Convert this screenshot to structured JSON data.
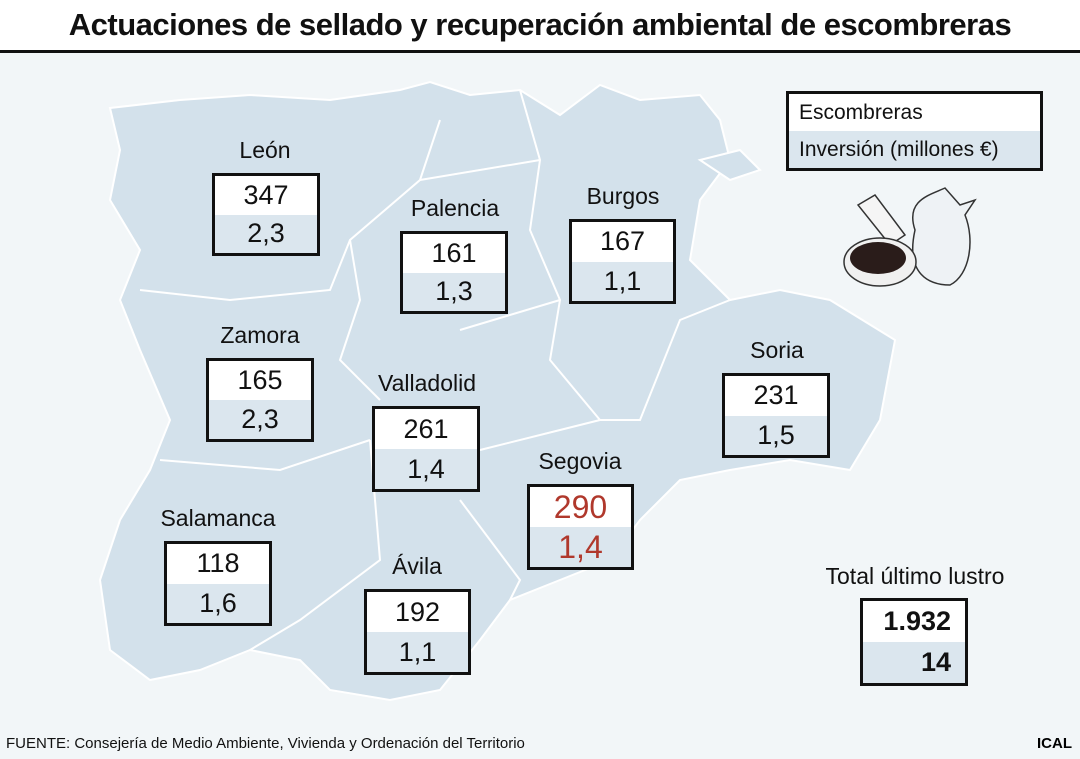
{
  "title": "Actuaciones de sellado y recuperación ambiental de escombreras",
  "legend": {
    "row1": "Escombreras",
    "row2": "Inversión (millones €)"
  },
  "provinces": [
    {
      "name": "León",
      "escombreras": "347",
      "inversion": "2,3"
    },
    {
      "name": "Palencia",
      "escombreras": "161",
      "inversion": "1,3"
    },
    {
      "name": "Burgos",
      "escombreras": "167",
      "inversion": "1,1"
    },
    {
      "name": "Zamora",
      "escombreras": "165",
      "inversion": "2,3"
    },
    {
      "name": "Valladolid",
      "escombreras": "261",
      "inversion": "1,4"
    },
    {
      "name": "Segovia",
      "escombreras": "290",
      "inversion": "1,4",
      "highlight": "#b0382c"
    },
    {
      "name": "Soria",
      "escombreras": "231",
      "inversion": "1,5"
    },
    {
      "name": "Salamanca",
      "escombreras": "118",
      "inversion": "1,6"
    },
    {
      "name": "Ávila",
      "escombreras": "192",
      "inversion": "1,1"
    }
  ],
  "total": {
    "label": "Total último lustro",
    "escombreras": "1.932",
    "inversion": "14"
  },
  "icon": "debris-bag-and-pan-icon",
  "colors": {
    "map_fill": "#d3e1eb",
    "box_lower": "#dbe6ee",
    "highlight": "#b0382c"
  },
  "footer": {
    "source": "FUENTE: Consejería de Medio Ambiente, Vivienda y Ordenación del Territorio",
    "brand": "ICAL"
  }
}
